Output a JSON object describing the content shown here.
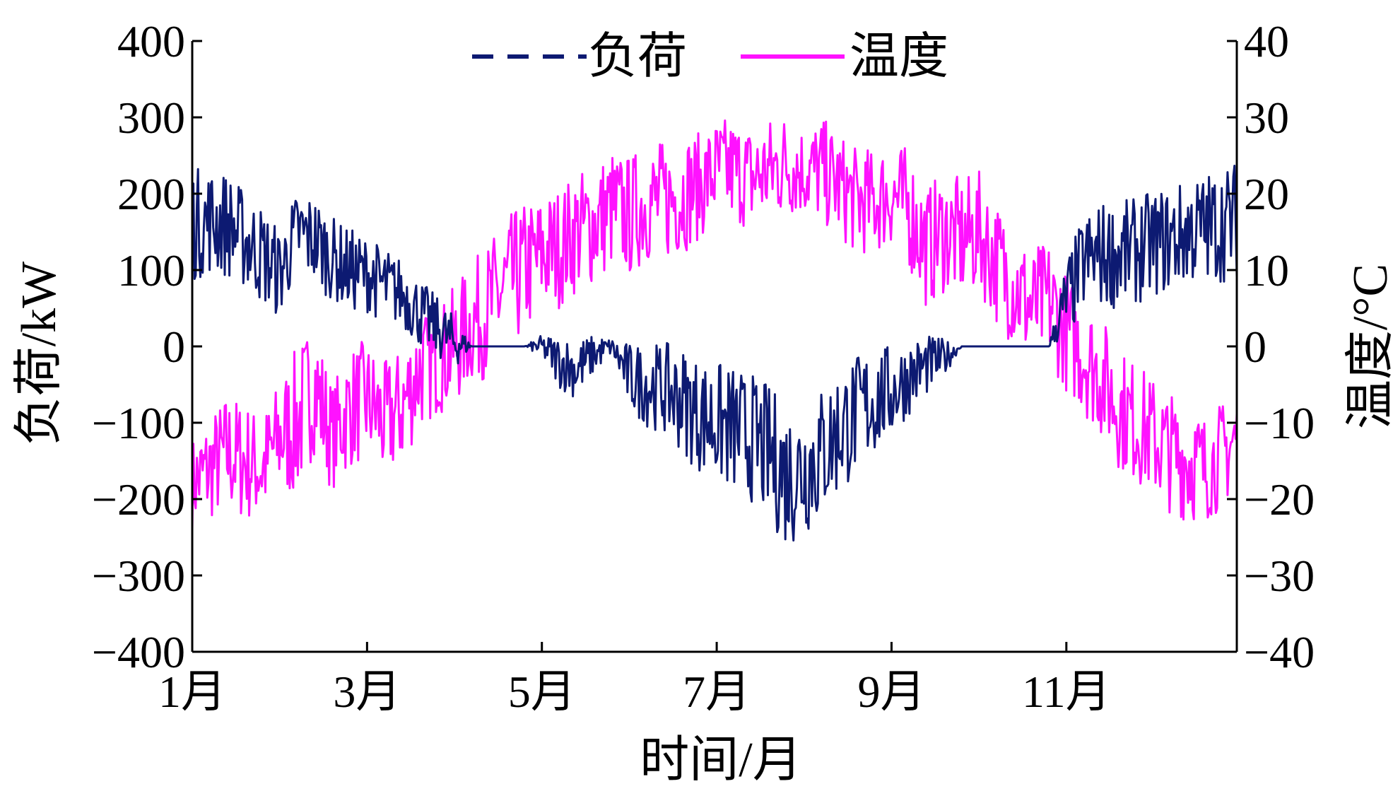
{
  "chart_data": {
    "type": "line",
    "xlabel": "时间/月",
    "ylabel_left": "负荷/kW",
    "ylabel_right": "温度/°C",
    "x_ticks": [
      "1月",
      "3月",
      "5月",
      "7月",
      "9月",
      "11月"
    ],
    "x_tick_months": [
      1,
      3,
      5,
      7,
      9,
      11
    ],
    "xlim_months": [
      1,
      12.95
    ],
    "y_left_ticks": [
      "400",
      "300",
      "200",
      "100",
      "0",
      "−100",
      "−200",
      "−300",
      "−400"
    ],
    "y_left_lim": [
      -400,
      400
    ],
    "y_right_ticks": [
      "40",
      "30",
      "20",
      "10",
      "0",
      "−10",
      "−20",
      "−30",
      "−40"
    ],
    "y_right_lim": [
      -40,
      40
    ],
    "grid": false,
    "legend_position": "top-center",
    "colors": {
      "load": "#0d1a72",
      "temperature": "#ff12ff"
    },
    "series": [
      {
        "name": "负荷",
        "axis": "left",
        "style": "dashed",
        "color": "#0d1a72",
        "month": [
          1.0,
          1.2,
          1.4,
          1.6,
          1.8,
          2.0,
          2.2,
          2.4,
          2.6,
          2.8,
          3.0,
          3.2,
          3.4,
          3.6,
          3.8,
          4.0,
          4.2,
          4.4,
          4.6,
          4.8,
          5.0,
          5.2,
          5.4,
          5.6,
          5.8,
          6.0,
          6.2,
          6.4,
          6.6,
          6.8,
          7.0,
          7.2,
          7.4,
          7.6,
          7.8,
          8.0,
          8.2,
          8.4,
          8.6,
          8.8,
          9.0,
          9.2,
          9.4,
          9.6,
          9.8,
          10.0,
          10.2,
          10.4,
          10.6,
          10.8,
          11.0,
          11.2,
          11.4,
          11.6,
          11.8,
          12.0,
          12.2,
          12.4,
          12.6,
          12.8,
          12.95
        ],
        "mean": [
          160,
          165,
          160,
          140,
          120,
          95,
          150,
          140,
          115,
          100,
          95,
          80,
          70,
          45,
          25,
          5,
          0,
          0,
          0,
          0,
          0,
          -20,
          -30,
          -10,
          0,
          -40,
          -50,
          -55,
          -70,
          -90,
          -100,
          -110,
          -120,
          -140,
          -170,
          -160,
          -140,
          -110,
          -90,
          -70,
          -60,
          -40,
          -25,
          -15,
          0,
          0,
          0,
          0,
          0,
          0,
          60,
          110,
          120,
          120,
          125,
          135,
          140,
          150,
          155,
          160,
          165
        ],
        "spread": [
          75,
          70,
          70,
          65,
          65,
          60,
          55,
          60,
          55,
          55,
          50,
          50,
          45,
          45,
          40,
          35,
          0,
          0,
          0,
          0,
          15,
          35,
          40,
          25,
          10,
          45,
          55,
          60,
          70,
          75,
          80,
          85,
          85,
          90,
          95,
          90,
          90,
          85,
          80,
          75,
          60,
          50,
          40,
          25,
          0,
          0,
          0,
          0,
          0,
          0,
          55,
          65,
          70,
          70,
          70,
          70,
          70,
          70,
          75,
          75,
          80
        ]
      },
      {
        "name": "温度",
        "axis": "right",
        "style": "solid",
        "color": "#ff12ff",
        "month": [
          1.0,
          1.2,
          1.4,
          1.6,
          1.8,
          2.0,
          2.2,
          2.4,
          2.6,
          2.8,
          3.0,
          3.2,
          3.4,
          3.6,
          3.8,
          4.0,
          4.2,
          4.4,
          4.6,
          4.8,
          5.0,
          5.2,
          5.4,
          5.6,
          5.8,
          6.0,
          6.2,
          6.4,
          6.6,
          6.8,
          7.0,
          7.2,
          7.4,
          7.6,
          7.8,
          8.0,
          8.2,
          8.4,
          8.6,
          8.8,
          9.0,
          9.2,
          9.4,
          9.6,
          9.8,
          10.0,
          10.2,
          10.4,
          10.6,
          10.8,
          11.0,
          11.2,
          11.4,
          11.6,
          11.8,
          12.0,
          12.2,
          12.4,
          12.6,
          12.8,
          12.95
        ],
        "mean": [
          -18,
          -16,
          -14,
          -15,
          -16,
          -12,
          -10,
          -5,
          -12,
          -8,
          -7,
          -10,
          -8,
          -3,
          -2,
          0,
          3,
          5,
          8,
          10,
          12,
          13,
          15,
          16,
          18,
          17,
          19,
          19,
          20,
          21,
          23,
          23,
          22,
          23,
          24,
          23,
          23,
          21,
          19,
          19,
          20,
          18,
          13,
          15,
          14,
          15,
          11,
          8,
          5,
          6,
          2,
          -1,
          -4,
          -8,
          -10,
          -12,
          -14,
          -15,
          -16,
          -14,
          -12
        ],
        "spread": [
          6,
          7,
          8,
          8,
          7,
          8,
          10,
          9,
          7,
          8,
          8,
          8,
          8,
          8,
          7,
          8,
          8,
          9,
          9,
          9,
          8,
          8,
          8,
          8,
          8,
          8,
          8,
          8,
          8,
          7,
          7,
          7,
          7,
          7,
          7,
          6,
          7,
          7,
          7,
          7,
          7,
          8,
          8,
          8,
          8,
          8,
          8,
          8,
          8,
          8,
          8,
          8,
          8,
          8,
          8,
          8,
          8,
          8,
          7,
          7,
          7
        ]
      }
    ]
  }
}
